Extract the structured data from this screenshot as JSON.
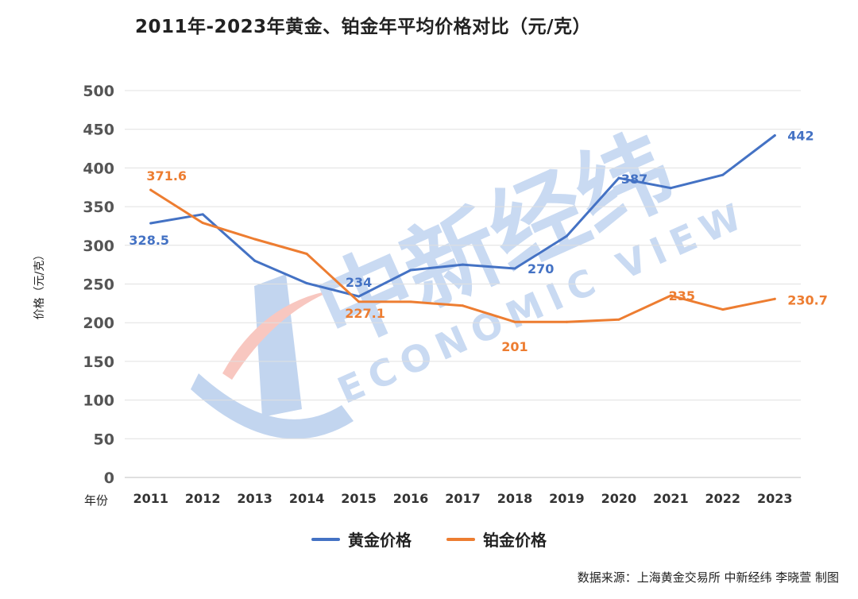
{
  "chart_data": {
    "type": "line",
    "title": "2011年-2023年黄金、铂金年平均价格对比（元/克）",
    "xlabel": "年份",
    "ylabel": "价格（元/克）",
    "categories": [
      "2011",
      "2012",
      "2013",
      "2014",
      "2015",
      "2016",
      "2017",
      "2018",
      "2019",
      "2020",
      "2021",
      "2022",
      "2023"
    ],
    "ylim": [
      0,
      500
    ],
    "yticks": [
      0,
      50,
      100,
      150,
      200,
      250,
      300,
      350,
      400,
      450,
      500
    ],
    "grid": true,
    "legend_position": "bottom",
    "series": [
      {
        "name": "黄金价格",
        "color": "#4472C4",
        "values": [
          328.5,
          340,
          280,
          251,
          234,
          268,
          275,
          270,
          312,
          387,
          374,
          391,
          442
        ],
        "labels": [
          {
            "index": 0,
            "text": "328.5"
          },
          {
            "index": 4,
            "text": "234"
          },
          {
            "index": 7,
            "text": "270"
          },
          {
            "index": 9,
            "text": "387"
          },
          {
            "index": 12,
            "text": "442"
          }
        ]
      },
      {
        "name": "铂金价格",
        "color": "#ED7D31",
        "values": [
          371.6,
          329,
          308,
          289,
          227.1,
          227,
          222,
          201,
          201,
          204,
          235,
          217,
          230.7
        ],
        "labels": [
          {
            "index": 0,
            "text": "371.6"
          },
          {
            "index": 4,
            "text": "227.1"
          },
          {
            "index": 7,
            "text": "201"
          },
          {
            "index": 10,
            "text": "235"
          },
          {
            "index": 12,
            "text": "230.7"
          }
        ]
      }
    ]
  },
  "source": "数据来源：上海黄金交易所 中新经纬 李晓萱 制图",
  "watermark": {
    "main": "中新经纬",
    "sub": "ECONOMIC VIEW"
  }
}
